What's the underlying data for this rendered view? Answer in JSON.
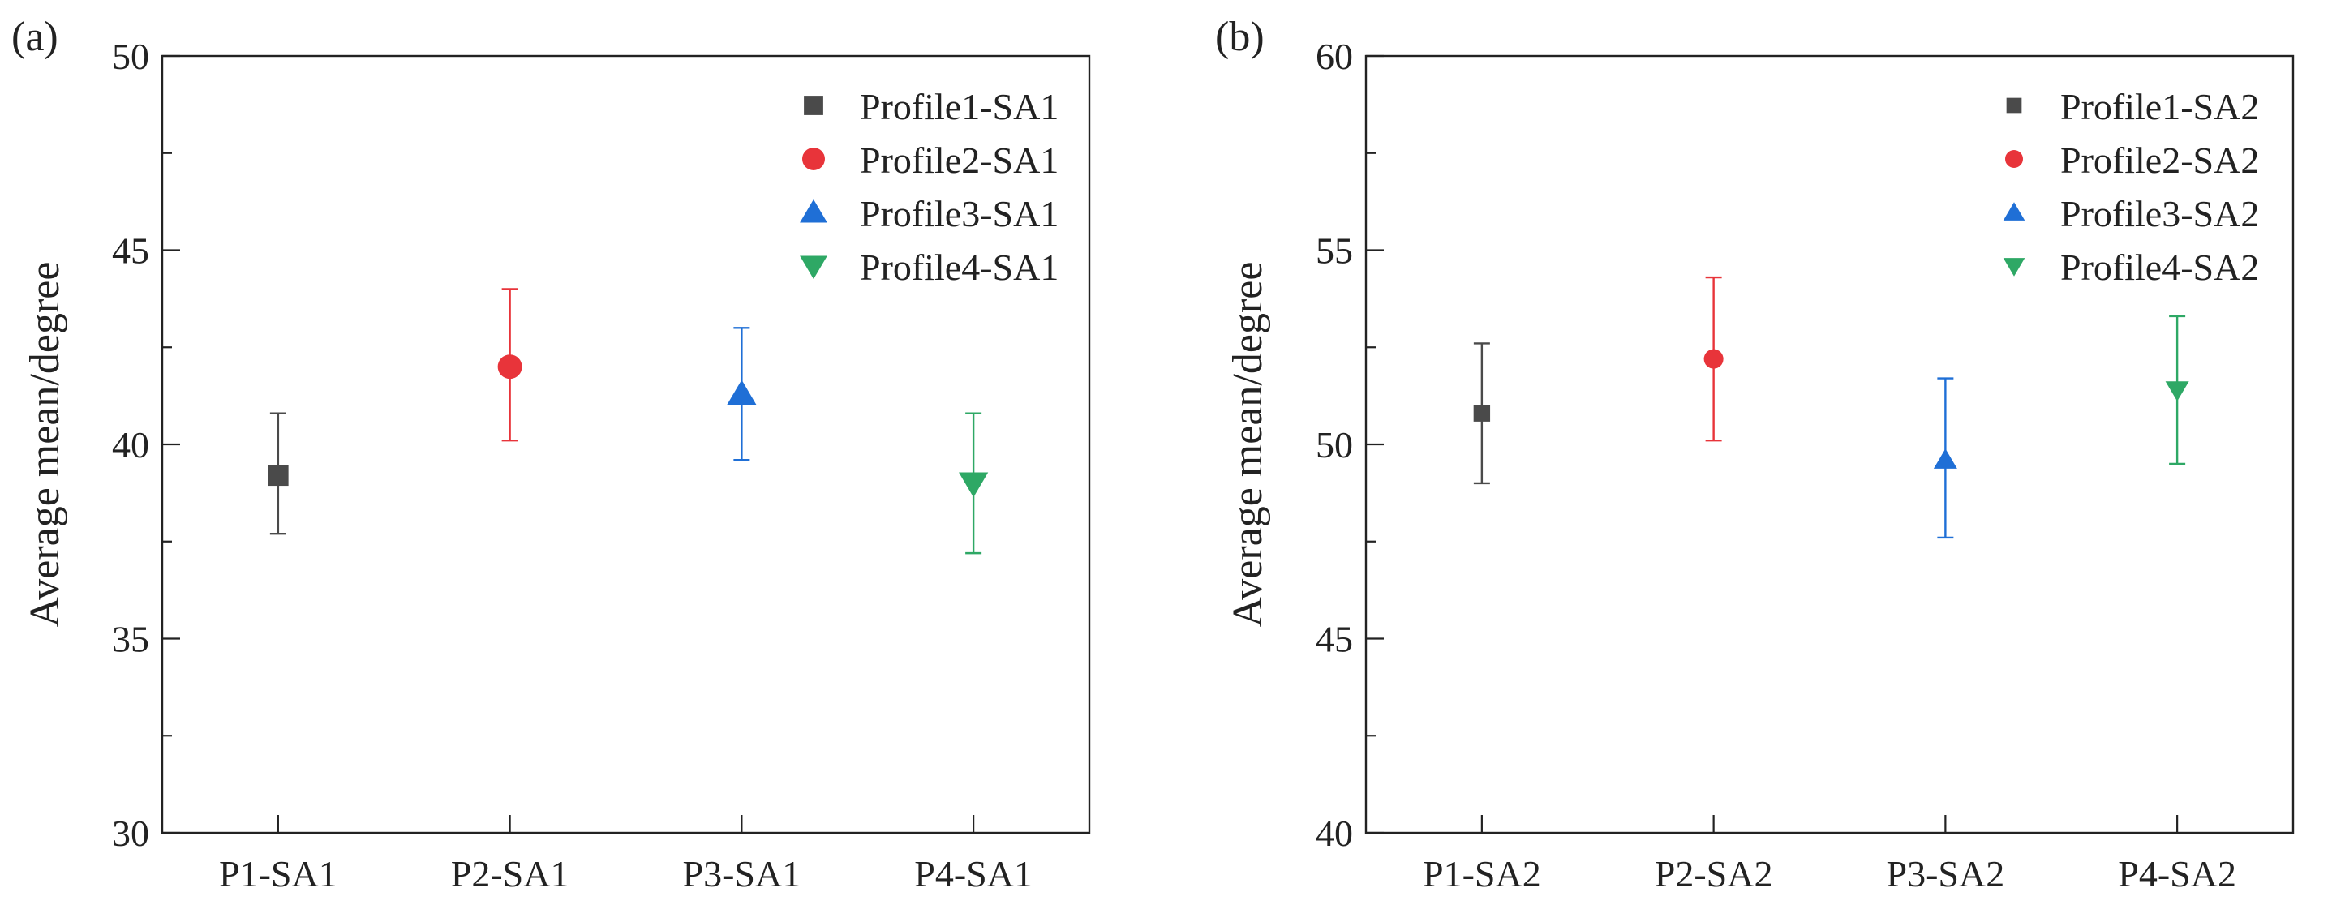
{
  "chart_data": [
    {
      "type": "scatter",
      "panel_label": "(a)",
      "ylabel": "Average mean/degree",
      "xlabel": "",
      "ylim": [
        30,
        50
      ],
      "yticks": [
        30,
        35,
        40,
        45,
        50
      ],
      "categories": [
        "P1-SA1",
        "P2-SA1",
        "P3-SA1",
        "P4-SA1"
      ],
      "legend_position": "top-right",
      "series": [
        {
          "name": "Profile1-SA1",
          "color": "#4a4a4a",
          "marker": "square",
          "x": "P1-SA1",
          "y": 39.2,
          "err_low": 37.7,
          "err_high": 40.8
        },
        {
          "name": "Profile2-SA1",
          "color": "#e8343a",
          "marker": "circle",
          "x": "P2-SA1",
          "y": 42.0,
          "err_low": 40.1,
          "err_high": 44.0
        },
        {
          "name": "Profile3-SA1",
          "color": "#1f6fd6",
          "marker": "triangle-up",
          "x": "P3-SA1",
          "y": 41.3,
          "err_low": 39.6,
          "err_high": 43.0
        },
        {
          "name": "Profile4-SA1",
          "color": "#2ea865",
          "marker": "triangle-down",
          "x": "P4-SA1",
          "y": 39.0,
          "err_low": 37.2,
          "err_high": 40.8
        }
      ]
    },
    {
      "type": "scatter",
      "panel_label": "(b)",
      "ylabel": "Average mean/degree",
      "xlabel": "",
      "ylim": [
        40,
        60
      ],
      "yticks": [
        40,
        45,
        50,
        55,
        60
      ],
      "categories": [
        "P1-SA2",
        "P2-SA2",
        "P3-SA2",
        "P4-SA2"
      ],
      "legend_position": "top-right",
      "series": [
        {
          "name": "Profile1-SA2",
          "color": "#4a4a4a",
          "marker": "square",
          "x": "P1-SA2",
          "y": 50.8,
          "err_low": 49.0,
          "err_high": 52.6
        },
        {
          "name": "Profile2-SA2",
          "color": "#e8343a",
          "marker": "circle",
          "x": "P2-SA2",
          "y": 52.2,
          "err_low": 50.1,
          "err_high": 54.3
        },
        {
          "name": "Profile3-SA2",
          "color": "#1f6fd6",
          "marker": "triangle-up",
          "x": "P3-SA2",
          "y": 49.6,
          "err_low": 47.6,
          "err_high": 51.7
        },
        {
          "name": "Profile4-SA2",
          "color": "#2ea865",
          "marker": "triangle-down",
          "x": "P4-SA2",
          "y": 51.4,
          "err_low": 49.5,
          "err_high": 53.3
        }
      ]
    }
  ]
}
